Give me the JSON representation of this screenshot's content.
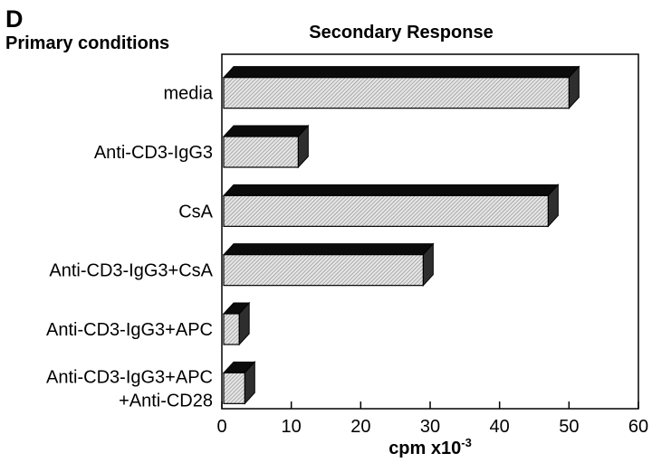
{
  "panel_label": "D",
  "chart_data": {
    "type": "bar",
    "orientation": "horizontal",
    "title": "Secondary Response",
    "category_axis_title": "Primary conditions",
    "xlabel": "cpm x10",
    "xlabel_exponent": "-3",
    "xlim": [
      0,
      60
    ],
    "xticks": [
      0,
      10,
      20,
      30,
      40,
      50,
      60
    ],
    "grid": false,
    "style": "3d-hatched",
    "categories": [
      [
        "media"
      ],
      [
        "Anti-CD3-IgG3"
      ],
      [
        "CsA"
      ],
      [
        "Anti-CD3-IgG3+CsA"
      ],
      [
        "Anti-CD3-IgG3+APC"
      ],
      [
        "Anti-CD3-IgG3+APC",
        "+Anti-CD28"
      ]
    ],
    "values": [
      50,
      11,
      47,
      29,
      2.5,
      3.3
    ]
  }
}
